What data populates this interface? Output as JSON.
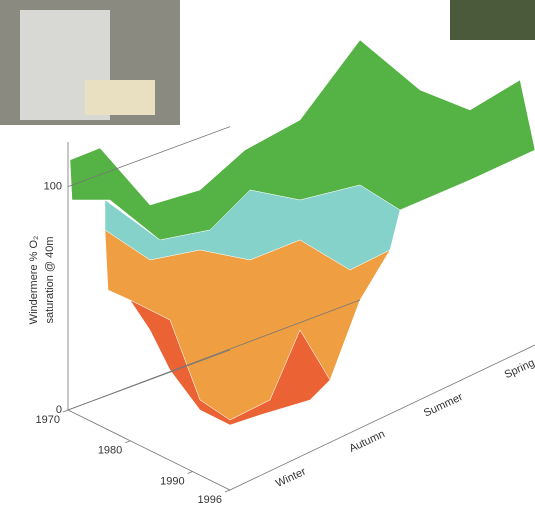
{
  "chart_data": {
    "type": "surface",
    "zlabel": [
      "Windermere % O₂",
      "saturation @ 40m"
    ],
    "zlim": [
      0,
      120
    ],
    "zticks": [
      0,
      100
    ],
    "xlim": [
      1970,
      1996
    ],
    "xticks": [
      1970,
      1980,
      1990,
      1996
    ],
    "categories": [
      "Winter",
      "Autumn",
      "Summer",
      "Spring"
    ],
    "colors": [
      "#4cae3c",
      "#7fd0c8",
      "#ef9a38",
      "#ea5a2a"
    ]
  }
}
